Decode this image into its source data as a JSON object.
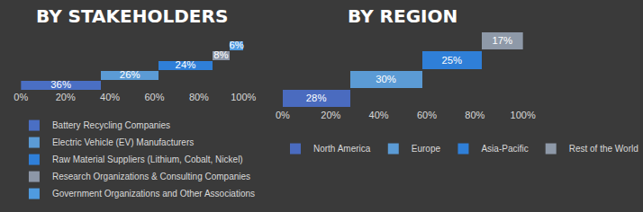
{
  "chart_data": [
    {
      "type": "bar",
      "title": "BY STAKEHOLDERS",
      "orientation": "horizontal",
      "stacked": true,
      "data_labels": true,
      "grid": false,
      "tick_labels": "x",
      "legend": "bottom",
      "xlim": [
        0,
        100
      ],
      "xticks": [
        {
          "value": 0,
          "label": "0%"
        },
        {
          "value": 20,
          "label": "20%"
        },
        {
          "value": 40,
          "label": "40%"
        },
        {
          "value": 60,
          "label": "60%"
        },
        {
          "value": 80,
          "label": "80%"
        },
        {
          "value": 100,
          "label": "100%"
        }
      ],
      "series": [
        {
          "name": "Battery Recycling Companies",
          "color": "#4a6fc4",
          "values": [
            36
          ],
          "value_labels": [
            "36%"
          ]
        },
        {
          "name": "Electric Vehicle (EV) Manufacturers",
          "color": "#5b9bd5",
          "values": [
            26
          ],
          "value_labels": [
            "26%"
          ]
        },
        {
          "name": "Raw Material Suppliers (Lithium, Cobalt, Nickel)",
          "color": "#2f7fd8",
          "values": [
            24
          ],
          "value_labels": [
            "24%"
          ]
        },
        {
          "name": "Research Organizations & Consulting Companies",
          "color": "#8d97a8",
          "values": [
            8
          ],
          "value_labels": [
            "8%"
          ]
        },
        {
          "name": "Government Organizations and Other Associations",
          "color": "#4f9be0",
          "values": [
            6
          ],
          "value_labels": [
            "6%"
          ]
        }
      ]
    },
    {
      "type": "bar",
      "title": "BY REGION",
      "orientation": "horizontal",
      "stacked": true,
      "data_labels": true,
      "grid": false,
      "tick_labels": "x",
      "legend": "bottom",
      "xlim": [
        0,
        100
      ],
      "xticks": [
        {
          "value": 0,
          "label": "0%"
        },
        {
          "value": 20,
          "label": "20%"
        },
        {
          "value": 40,
          "label": "40%"
        },
        {
          "value": 60,
          "label": "60%"
        },
        {
          "value": 80,
          "label": "80%"
        },
        {
          "value": 100,
          "label": "100%"
        }
      ],
      "series": [
        {
          "name": "North America",
          "color": "#4a6bbf",
          "values": [
            28
          ],
          "value_labels": [
            "28%"
          ]
        },
        {
          "name": "Europe",
          "color": "#5b9bd5",
          "values": [
            30
          ],
          "value_labels": [
            "30%"
          ]
        },
        {
          "name": "Asia-Pacific",
          "color": "#2f7fd8",
          "values": [
            25
          ],
          "value_labels": [
            "25%"
          ]
        },
        {
          "name": "Rest of the World",
          "color": "#8e99a8",
          "values": [
            17
          ],
          "value_labels": [
            "17%"
          ]
        }
      ]
    }
  ]
}
